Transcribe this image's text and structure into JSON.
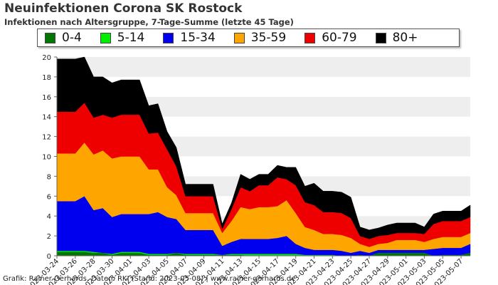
{
  "title": "Neuinfektionen Corona SK Rostock",
  "subtitle": "Infektionen nach Altersgruppe, 7-Tage-Summe (letzte 45 Tage)",
  "footer": "Grafik: Rainer Gerhards, Daten: RKI (Stand: 2023-05-08) | www.rainer-gerhards.de",
  "chart_data": {
    "type": "area",
    "stacked": true,
    "ylim": [
      0,
      20
    ],
    "yticks": [
      0,
      2,
      4,
      6,
      8,
      10,
      12,
      14,
      16,
      18,
      20
    ],
    "grid": "horizontal bands",
    "legend_position": "top",
    "x": [
      "2023-03-24",
      "2023-03-25",
      "2023-03-26",
      "2023-03-27",
      "2023-03-28",
      "2023-03-29",
      "2023-03-30",
      "2023-03-31",
      "2023-04-01",
      "2023-04-02",
      "2023-04-03",
      "2023-04-04",
      "2023-04-05",
      "2023-04-06",
      "2023-04-07",
      "2023-04-08",
      "2023-04-09",
      "2023-04-10",
      "2023-04-11",
      "2023-04-12",
      "2023-04-13",
      "2023-04-14",
      "2023-04-15",
      "2023-04-16",
      "2023-04-17",
      "2023-04-18",
      "2023-04-19",
      "2023-04-20",
      "2023-04-21",
      "2023-04-22",
      "2023-04-23",
      "2023-04-24",
      "2023-04-25",
      "2023-04-26",
      "2023-04-27",
      "2023-04-28",
      "2023-04-29",
      "2023-04-30",
      "2023-05-01",
      "2023-05-02",
      "2023-05-03",
      "2023-05-04",
      "2023-05-05",
      "2023-05-06",
      "2023-05-07",
      "2023-05-08"
    ],
    "xtick_labels": [
      "2023-03-24",
      "2023-03-26",
      "2023-03-28",
      "2023-03-30",
      "2023-04-01",
      "2023-04-03",
      "2023-04-05",
      "2023-04-07",
      "2023-04-09",
      "2023-04-11",
      "2023-04-13",
      "2023-04-15",
      "2023-04-17",
      "2023-04-19",
      "2023-04-21",
      "2023-04-23",
      "2023-04-25",
      "2023-04-27",
      "2023-04-29",
      "2023-05-01",
      "2023-05-03",
      "2023-05-05",
      "2023-05-07"
    ],
    "series": [
      {
        "name": "0-4",
        "color": "#007700",
        "values": [
          0.4,
          0.4,
          0.4,
          0.4,
          0.3,
          0.3,
          0.1,
          0.3,
          0.3,
          0.3,
          0.1,
          0.1,
          0.1,
          0.3,
          0.1,
          0.1,
          0.1,
          0.1,
          0.1,
          0.1,
          0.1,
          0.0,
          0.0,
          0.0,
          0.0,
          0.0,
          0.0,
          0.0,
          0.0,
          0.0,
          0.0,
          0.0,
          0.0,
          0.1,
          0.0,
          0.3,
          0.3,
          0.3,
          0.3,
          0.3,
          0.3,
          0.0,
          0.1,
          0.1,
          0.1,
          0.3
        ]
      },
      {
        "name": "5-14",
        "color": "#00ee00",
        "values": [
          0.1,
          0.1,
          0.1,
          0.1,
          0.1,
          0.0,
          0.1,
          0.1,
          0.1,
          0.1,
          0.1,
          0.1,
          0.1,
          0.0,
          0.1,
          0.1,
          0.1,
          0.1,
          0.0,
          0.1,
          0.1,
          0.2,
          0.2,
          0.2,
          0.2,
          0.2,
          0.2,
          0.1,
          0.1,
          0.1,
          0.1,
          0.0,
          0.0,
          0.0,
          0.0,
          0.0,
          0.0,
          0.0,
          0.0,
          0.0,
          0.0,
          0.0,
          0.0,
          0.0,
          0.0,
          0.0
        ]
      },
      {
        "name": "15-34",
        "color": "#0000ee",
        "values": [
          5.0,
          5.0,
          5.0,
          5.5,
          4.2,
          4.5,
          3.7,
          3.8,
          3.8,
          3.8,
          4.0,
          4.2,
          3.7,
          3.4,
          2.4,
          2.4,
          2.4,
          2.4,
          0.9,
          1.2,
          1.5,
          1.5,
          1.5,
          1.5,
          1.6,
          1.8,
          1.0,
          0.7,
          0.5,
          0.5,
          0.5,
          0.5,
          0.3,
          0.4,
          0.3,
          0.3,
          0.3,
          0.3,
          0.3,
          0.3,
          0.3,
          0.7,
          0.7,
          0.7,
          0.7,
          0.9
        ]
      },
      {
        "name": "35-59",
        "color": "#ffa500",
        "values": [
          4.8,
          4.8,
          4.8,
          5.4,
          5.6,
          5.8,
          5.9,
          5.8,
          5.8,
          5.8,
          4.5,
          4.3,
          3.0,
          2.4,
          1.7,
          1.7,
          1.7,
          1.7,
          1.3,
          2.1,
          3.2,
          3.0,
          3.2,
          3.2,
          3.2,
          3.6,
          3.1,
          2.1,
          2.0,
          1.6,
          1.6,
          1.6,
          1.5,
          0.7,
          0.6,
          0.6,
          0.7,
          1.0,
          1.0,
          1.0,
          0.8,
          1.0,
          1.1,
          1.1,
          1.1,
          1.1
        ]
      },
      {
        "name": "60-79",
        "color": "#ee0000",
        "values": [
          4.2,
          4.2,
          4.2,
          4.0,
          3.7,
          3.6,
          4.1,
          4.2,
          4.2,
          4.2,
          3.6,
          3.7,
          3.8,
          2.9,
          1.7,
          1.7,
          1.7,
          1.7,
          0.4,
          1.2,
          2.0,
          1.8,
          2.2,
          2.2,
          2.9,
          2.1,
          2.8,
          2.5,
          2.5,
          2.2,
          2.2,
          2.2,
          2.0,
          0.8,
          0.8,
          0.8,
          0.8,
          0.7,
          0.7,
          0.7,
          0.8,
          1.5,
          1.6,
          1.6,
          1.6,
          1.6
        ]
      },
      {
        "name": "80+",
        "color": "#000000",
        "values": [
          5.3,
          5.3,
          5.3,
          4.6,
          4.1,
          3.8,
          3.5,
          3.5,
          3.5,
          3.5,
          2.8,
          2.9,
          1.8,
          1.9,
          1.2,
          1.2,
          1.2,
          1.2,
          0.5,
          0.6,
          1.3,
          1.2,
          1.1,
          1.1,
          1.2,
          1.2,
          1.8,
          1.6,
          2.2,
          2.1,
          2.1,
          2.1,
          2.1,
          0.9,
          0.9,
          0.8,
          1.0,
          1.0,
          1.0,
          1.0,
          0.7,
          1.0,
          1.0,
          1.0,
          1.0,
          1.2
        ]
      }
    ]
  }
}
